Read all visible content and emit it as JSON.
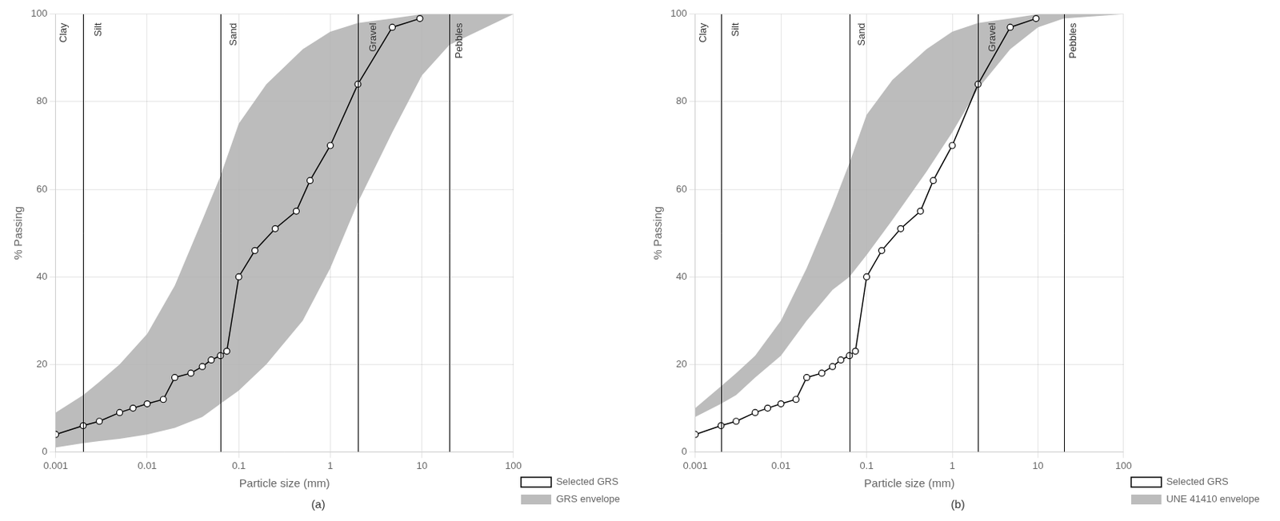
{
  "chart_data": [
    {
      "type": "line",
      "subtitle": "(a)",
      "xlabel": "Particle size (mm)",
      "ylabel": "% Passing",
      "log": "x",
      "xlim": [
        0.001,
        100
      ],
      "ylim": [
        0,
        100
      ],
      "xticks": [
        0.001,
        0.01,
        0.1,
        1,
        10,
        100
      ],
      "yticks": [
        0,
        20,
        40,
        60,
        80,
        100
      ],
      "grid": true,
      "legend": "lower right",
      "series": [
        {
          "name": "Selected GRS",
          "type": "line",
          "color": "#000000",
          "marker": "circle",
          "x": [
            0.001,
            0.002,
            0.003,
            0.005,
            0.007,
            0.01,
            0.015,
            0.02,
            0.03,
            0.04,
            0.05,
            0.063,
            0.074,
            0.1,
            0.15,
            0.25,
            0.425,
            0.6,
            1.0,
            2.0,
            4.75,
            9.5
          ],
          "values": [
            4,
            6,
            7,
            9,
            10,
            11,
            12,
            17,
            18,
            19.5,
            21,
            22,
            23,
            40,
            46,
            51,
            55,
            62,
            70,
            84,
            97,
            99
          ]
        },
        {
          "name": "GRS envelope",
          "type": "area",
          "color": "#b0b0b0",
          "x": [
            0.001,
            0.002,
            0.003,
            0.005,
            0.01,
            0.02,
            0.04,
            0.063,
            0.1,
            0.2,
            0.5,
            1.0,
            2.0,
            4.75,
            10.0,
            20.0,
            100.0
          ],
          "upper": [
            9,
            13,
            16,
            20,
            27,
            38,
            53,
            63,
            75,
            84,
            92,
            96,
            98,
            99,
            100,
            100,
            100
          ],
          "lower": [
            1,
            2,
            2.5,
            3,
            4,
            5.5,
            8,
            11,
            14,
            20,
            30,
            42,
            57,
            73,
            86,
            93,
            100
          ]
        }
      ],
      "vlines": [
        0.002,
        0.063,
        2.0,
        20.0
      ],
      "annotations": [
        {
          "text": "Clay",
          "x": 0.00105,
          "y": 98
        },
        {
          "text": "Silt",
          "x": 0.0025,
          "y": 98
        },
        {
          "text": "Sand",
          "x": 0.075,
          "y": 98
        },
        {
          "text": "Gravel",
          "x": 2.5,
          "y": 98
        },
        {
          "text": "Pebbles",
          "x": 22.0,
          "y": 98
        }
      ]
    },
    {
      "type": "line",
      "subtitle": "(b)",
      "xlabel": "Particle size (mm)",
      "ylabel": "% Passing",
      "log": "x",
      "xlim": [
        0.001,
        100
      ],
      "ylim": [
        0,
        100
      ],
      "xticks": [
        0.001,
        0.01,
        0.1,
        1,
        10,
        100
      ],
      "yticks": [
        0,
        20,
        40,
        60,
        80,
        100
      ],
      "grid": true,
      "legend": "lower right",
      "series": [
        {
          "name": "Selected GRS",
          "type": "line",
          "color": "#000000",
          "marker": "circle",
          "x": [
            0.001,
            0.002,
            0.003,
            0.005,
            0.007,
            0.01,
            0.015,
            0.02,
            0.03,
            0.04,
            0.05,
            0.063,
            0.074,
            0.1,
            0.15,
            0.25,
            0.425,
            0.6,
            1.0,
            2.0,
            4.75,
            9.5
          ],
          "values": [
            4,
            6,
            7,
            9,
            10,
            11,
            12,
            17,
            18,
            19.5,
            21,
            22,
            23,
            40,
            46,
            51,
            55,
            62,
            70,
            84,
            97,
            99
          ]
        },
        {
          "name": "UNE 41410 envelope",
          "type": "area",
          "color": "#b0b0b0",
          "x": [
            0.001,
            0.002,
            0.003,
            0.005,
            0.01,
            0.02,
            0.04,
            0.063,
            0.1,
            0.2,
            0.5,
            1.0,
            2.0,
            4.75,
            10.0,
            20.0,
            100.0
          ],
          "upper": [
            10,
            15,
            18,
            22,
            30,
            42,
            56,
            66,
            77,
            85,
            92,
            96,
            98,
            99,
            100,
            100,
            100
          ],
          "lower": [
            8,
            11,
            13,
            17,
            22,
            30,
            37,
            40,
            45,
            53,
            64,
            73,
            83,
            92,
            97,
            99,
            100
          ]
        }
      ],
      "vlines": [
        0.002,
        0.063,
        2.0,
        20.0
      ],
      "annotations": [
        {
          "text": "Clay",
          "x": 0.00105,
          "y": 98
        },
        {
          "text": "Silt",
          "x": 0.0025,
          "y": 98
        },
        {
          "text": "Sand",
          "x": 0.075,
          "y": 98
        },
        {
          "text": "Gravel",
          "x": 2.5,
          "y": 98
        },
        {
          "text": "Pebbles",
          "x": 22.0,
          "y": 98
        }
      ]
    }
  ]
}
